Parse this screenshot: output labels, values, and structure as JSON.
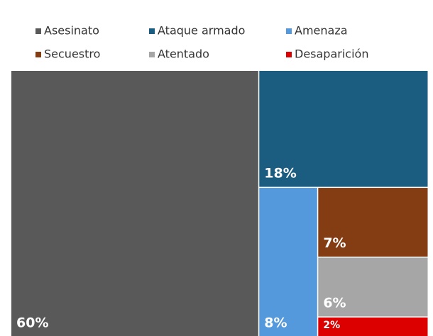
{
  "chart_data": {
    "type": "treemap",
    "categories": [
      "Asesinato",
      "Ataque armado",
      "Amenaza",
      "Secuestro",
      "Atentado",
      "Desaparición"
    ],
    "values": [
      60,
      18,
      8,
      7,
      6,
      2
    ],
    "value_labels": [
      "60%",
      "18%",
      "8%",
      "7%",
      "6%",
      "2%"
    ],
    "colors": [
      "#595959",
      "#1b5d80",
      "#5499db",
      "#843c13",
      "#a6a6a6",
      "#dd0000"
    ],
    "legend": "top"
  }
}
